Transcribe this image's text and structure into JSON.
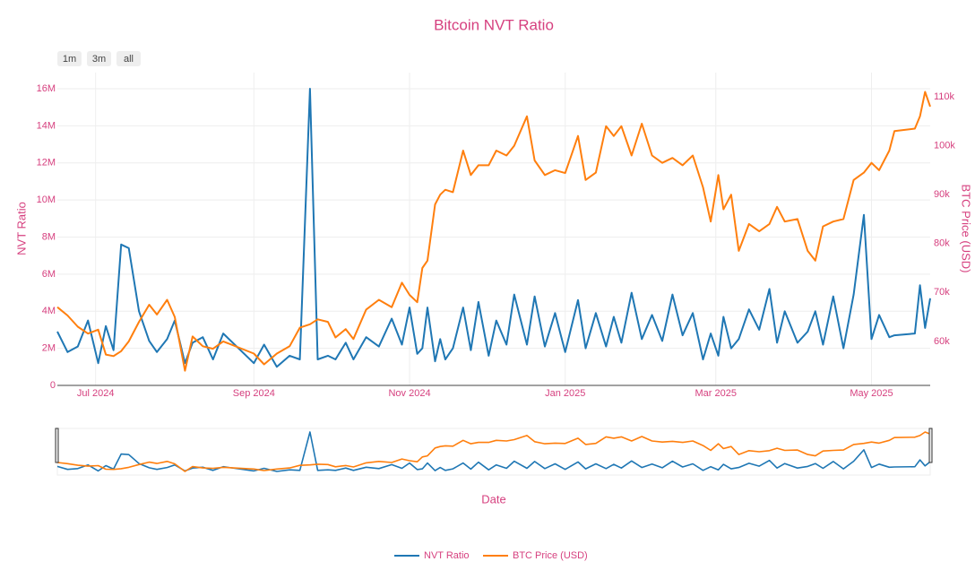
{
  "chart_data": {
    "type": "line",
    "title": "Bitcoin NVT Ratio",
    "range_buttons": [
      "1m",
      "3m",
      "all"
    ],
    "xlabel": "Date",
    "ylabel": "NVT Ratio",
    "y2label": "BTC Price (USD)",
    "x": [
      "2024-06-16",
      "2024-06-20",
      "2024-06-24",
      "2024-06-28",
      "2024-07-02",
      "2024-07-05",
      "2024-07-08",
      "2024-07-11",
      "2024-07-14",
      "2024-07-18",
      "2024-07-22",
      "2024-07-25",
      "2024-07-29",
      "2024-08-01",
      "2024-08-05",
      "2024-08-08",
      "2024-08-12",
      "2024-08-16",
      "2024-08-20",
      "2024-09-01",
      "2024-09-05",
      "2024-09-10",
      "2024-09-15",
      "2024-09-19",
      "2024-09-23",
      "2024-09-26",
      "2024-09-30",
      "2024-10-03",
      "2024-10-07",
      "2024-10-10",
      "2024-10-15",
      "2024-10-20",
      "2024-10-25",
      "2024-10-29",
      "2024-11-01",
      "2024-11-04",
      "2024-11-06",
      "2024-11-08",
      "2024-11-11",
      "2024-11-13",
      "2024-11-15",
      "2024-11-18",
      "2024-11-22",
      "2024-11-25",
      "2024-11-28",
      "2024-12-02",
      "2024-12-05",
      "2024-12-09",
      "2024-12-12",
      "2024-12-17",
      "2024-12-20",
      "2024-12-24",
      "2024-12-28",
      "2025-01-01",
      "2025-01-06",
      "2025-01-09",
      "2025-01-13",
      "2025-01-17",
      "2025-01-20",
      "2025-01-23",
      "2025-01-27",
      "2025-01-31",
      "2025-02-04",
      "2025-02-08",
      "2025-02-12",
      "2025-02-16",
      "2025-02-20",
      "2025-02-24",
      "2025-02-27",
      "2025-03-02",
      "2025-03-04",
      "2025-03-07",
      "2025-03-10",
      "2025-03-14",
      "2025-03-18",
      "2025-03-22",
      "2025-03-25",
      "2025-03-28",
      "2025-04-02",
      "2025-04-06",
      "2025-04-09",
      "2025-04-12",
      "2025-04-16",
      "2025-04-20",
      "2025-04-24",
      "2025-04-28",
      "2025-05-01",
      "2025-05-04",
      "2025-05-08",
      "2025-05-10",
      "2025-05-18",
      "2025-05-20",
      "2025-05-22",
      "2025-05-24"
    ],
    "series": [
      {
        "name": "NVT Ratio",
        "color": "#1f77b4",
        "axis": "y",
        "values": [
          2900000,
          1800000,
          2100000,
          3500000,
          1200000,
          3200000,
          1900000,
          7600000,
          7400000,
          4000000,
          2400000,
          1800000,
          2500000,
          3500000,
          1200000,
          2300000,
          2600000,
          1400000,
          2800000,
          1200000,
          2200000,
          1000000,
          1600000,
          1400000,
          16000000,
          1400000,
          1600000,
          1400000,
          2300000,
          1400000,
          2600000,
          2100000,
          3600000,
          2200000,
          4200000,
          1700000,
          2000000,
          4200000,
          1300000,
          2500000,
          1400000,
          2000000,
          4200000,
          1900000,
          4500000,
          1600000,
          3500000,
          2200000,
          4900000,
          2200000,
          4800000,
          2100000,
          3900000,
          1800000,
          4600000,
          2000000,
          3900000,
          2100000,
          3700000,
          2300000,
          5000000,
          2500000,
          3800000,
          2400000,
          4900000,
          2700000,
          3900000,
          1400000,
          2800000,
          1600000,
          3700000,
          2000000,
          2500000,
          4100000,
          3000000,
          5200000,
          2300000,
          4000000,
          2300000,
          2900000,
          4000000,
          2200000,
          4800000,
          2000000,
          4900000,
          9200000,
          2500000,
          3800000,
          2600000,
          2700000,
          2800000,
          5400000,
          3100000,
          4700000
        ]
      },
      {
        "name": "BTC Price (USD)",
        "color": "#ff7f0e",
        "axis": "y2",
        "values": [
          67000,
          65300,
          63000,
          61600,
          62400,
          57300,
          57000,
          58000,
          60000,
          64000,
          67500,
          65500,
          68500,
          65000,
          54000,
          61000,
          59000,
          58500,
          60000,
          57500,
          55300,
          57500,
          59000,
          62800,
          63500,
          64500,
          64000,
          60800,
          62500,
          60500,
          66500,
          68500,
          67000,
          72000,
          69500,
          68000,
          75000,
          76500,
          88000,
          90000,
          91000,
          90500,
          99000,
          94000,
          96000,
          96000,
          99000,
          98000,
          100000,
          106000,
          97000,
          94000,
          95000,
          94400,
          102000,
          93000,
          94500,
          104000,
          102000,
          104000,
          98000,
          104500,
          98000,
          96500,
          97500,
          96000,
          98000,
          91500,
          84500,
          94000,
          87000,
          90000,
          78500,
          84000,
          82500,
          84000,
          87500,
          84500,
          85000,
          78500,
          76500,
          83500,
          84500,
          85000,
          93000,
          94500,
          96500,
          95000,
          99000,
          103000,
          103500,
          106000,
          111000,
          108000
        ]
      }
    ],
    "xlim": [
      "2024-06-16",
      "2025-05-24"
    ],
    "xticks": [
      {
        "value": "2024-07-01",
        "label": "Jul 2024"
      },
      {
        "value": "2024-09-01",
        "label": "Sep 2024"
      },
      {
        "value": "2024-11-01",
        "label": "Nov 2024"
      },
      {
        "value": "2025-01-01",
        "label": "Jan 2025"
      },
      {
        "value": "2025-03-01",
        "label": "Mar 2025"
      },
      {
        "value": "2025-05-01",
        "label": "May 2025"
      }
    ],
    "ylim": [
      0,
      16000000
    ],
    "yticks": [
      0,
      {
        "value": 2000000,
        "label": "2M"
      },
      {
        "value": 4000000,
        "label": "4M"
      },
      {
        "value": 6000000,
        "label": "6M"
      },
      {
        "value": 8000000,
        "label": "8M"
      },
      {
        "value": 10000000,
        "label": "10M"
      },
      {
        "value": 12000000,
        "label": "12M"
      },
      {
        "value": 14000000,
        "label": "14M"
      },
      {
        "value": 16000000,
        "label": "16M"
      }
    ],
    "y2lim": [
      51000,
      111650
    ],
    "y2ticks": [
      {
        "value": 60000,
        "label": "60k"
      },
      {
        "value": 70000,
        "label": "70k"
      },
      {
        "value": 80000,
        "label": "80k"
      },
      {
        "value": 90000,
        "label": "90k"
      },
      {
        "value": 100000,
        "label": "100k"
      },
      {
        "value": 110000,
        "label": "110k"
      }
    ],
    "grid": true,
    "legend": "bottom",
    "range_slider": true
  }
}
